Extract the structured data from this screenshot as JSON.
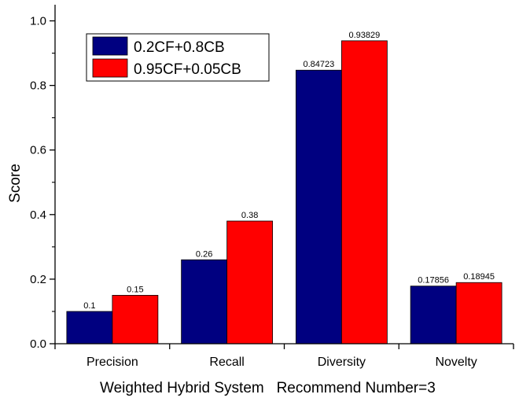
{
  "chart_data": {
    "type": "bar",
    "title": "",
    "xlabel": "Weighted Hybrid System   Recommend Number=3",
    "ylabel": "Score",
    "categories": [
      "Precision",
      "Recall",
      "Diversity",
      "Novelty"
    ],
    "series": [
      {
        "name": "0.2CF+0.8CB",
        "color": "#000080",
        "values": [
          0.1,
          0.26,
          0.84723,
          0.17856
        ],
        "labels": [
          "0.1",
          "0.26",
          "0.84723",
          "0.17856"
        ]
      },
      {
        "name": "0.95CF+0.05CB",
        "color": "#ff0000",
        "values": [
          0.15,
          0.38,
          0.93829,
          0.18945
        ],
        "labels": [
          "0.15",
          "0.38",
          "0.93829",
          "0.18945"
        ]
      }
    ],
    "ylim": [
      0,
      1.05
    ],
    "yticks": [
      "0.0",
      "0.2",
      "0.4",
      "0.6",
      "0.8",
      "1.0"
    ],
    "ytick_values": [
      0,
      0.2,
      0.4,
      0.6,
      0.8,
      1.0
    ],
    "grid": false,
    "legend_position": "top-left"
  }
}
